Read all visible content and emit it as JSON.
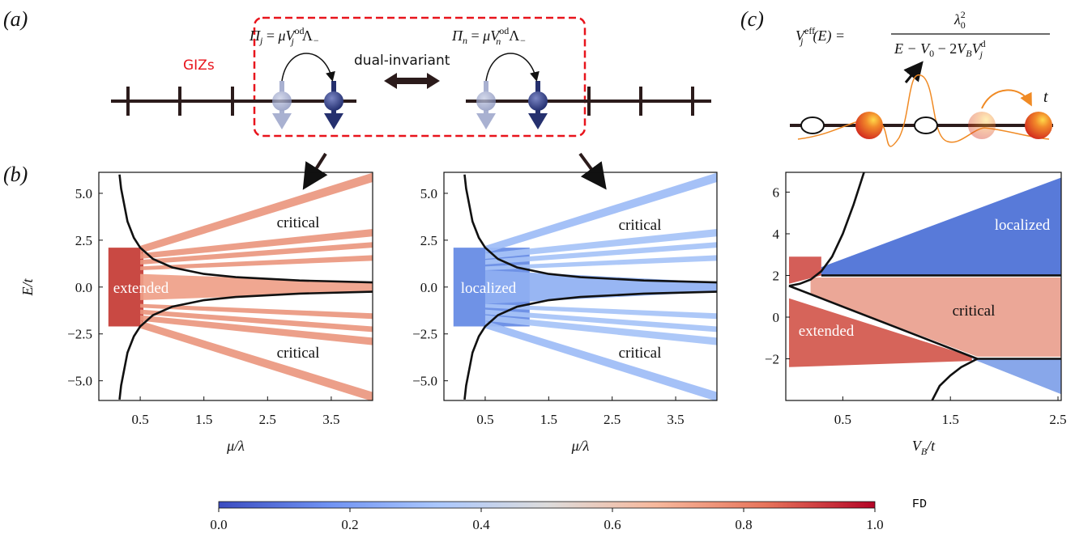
{
  "labels": {
    "a": "(a)",
    "b": "(b)",
    "c": "(c)",
    "gizs": "GIZs",
    "dual": "dual-invariant",
    "t": "t",
    "pi_j": [
      "Π",
      "j",
      " = ",
      "μ",
      "V",
      "od",
      "j",
      "Λ",
      "−"
    ],
    "pi_n": [
      "Π",
      "n",
      " = ",
      "μ",
      "V",
      "od",
      "n",
      "Λ",
      "−"
    ],
    "veff_left": [
      "V",
      "eff",
      "j",
      "(E) = "
    ],
    "veff_num": [
      "λ",
      "2",
      "0"
    ],
    "veff_den": [
      "E − V",
      "0",
      " − 2",
      "V",
      "B",
      "V",
      "d",
      "j"
    ]
  },
  "chart_data": [
    {
      "type": "band",
      "xlabel": [
        "μ/λ"
      ],
      "ylabel": "E/t",
      "xlim": [
        -0.15,
        4.15
      ],
      "ylim": [
        -6.05,
        6.12
      ],
      "xticks": [
        0.5,
        1.5,
        2.5,
        3.5
      ],
      "yticks": [
        {
          "value": 5,
          "label": "5.0"
        },
        2.5,
        {
          "value": 0,
          "label": "0.0"
        },
        {
          "value": -2.5,
          "label": "−2.5"
        },
        {
          "value": -5,
          "label": "−5.0"
        }
      ],
      "annotations": [
        "critical",
        "extended",
        "critical"
      ],
      "regions": [
        {
          "color": "#c43a33",
          "x": [
            0,
            0,
            0.55,
            0.55
          ],
          "values": [
            -2.1,
            2.1,
            2.1,
            -2.1
          ]
        },
        {
          "color": "#ea977f",
          "x": [
            0.5,
            0.5,
            4.15,
            4.15
          ],
          "values": [
            1.8,
            2.2,
            6.1,
            5.6
          ]
        },
        {
          "color": "#ea977f",
          "x": [
            0.5,
            0.5,
            4.15,
            4.15
          ],
          "values": [
            1.5,
            1.8,
            3.1,
            2.7
          ]
        },
        {
          "color": "#ea977f",
          "x": [
            0.5,
            0.5,
            4.15,
            4.15
          ],
          "values": [
            1.2,
            1.45,
            2.4,
            2.1
          ]
        },
        {
          "color": "#ea977f",
          "x": [
            0.5,
            0.5,
            4.15,
            4.15
          ],
          "values": [
            0.9,
            1.1,
            1.7,
            1.4
          ]
        },
        {
          "color": "#ef9f88",
          "x": [
            0.5,
            0.5,
            4.15,
            4.15
          ],
          "values": [
            -0.7,
            0.7,
            0.25,
            -0.25
          ]
        },
        {
          "color": "#ea977f",
          "x": [
            0.5,
            0.5,
            4.15,
            4.15
          ],
          "values": [
            -2.2,
            -1.8,
            -5.6,
            -6.1
          ]
        },
        {
          "color": "#ea977f",
          "x": [
            0.5,
            0.5,
            4.15,
            4.15
          ],
          "values": [
            -1.8,
            -1.5,
            -2.7,
            -3.1
          ]
        },
        {
          "color": "#ea977f",
          "x": [
            0.5,
            0.5,
            4.15,
            4.15
          ],
          "values": [
            -1.45,
            -1.2,
            -2.1,
            -2.4
          ]
        },
        {
          "color": "#ea977f",
          "x": [
            0.5,
            0.5,
            4.15,
            4.15
          ],
          "values": [
            -1.1,
            -0.9,
            -1.4,
            -1.7
          ]
        }
      ],
      "curves": [
        {
          "x": [
            0.175,
            0.2,
            0.3,
            0.4,
            0.5,
            0.7,
            1,
            1.5,
            2,
            3,
            4.15
          ],
          "values": [
            6.0,
            5.25,
            3.5,
            2.63,
            2.1,
            1.5,
            1.05,
            0.7,
            0.53,
            0.35,
            0.25
          ]
        },
        {
          "x": [
            0.175,
            0.2,
            0.3,
            0.4,
            0.5,
            0.7,
            1,
            1.5,
            2,
            3,
            4.15
          ],
          "values": [
            -6.0,
            -5.25,
            -3.5,
            -2.63,
            -2.1,
            -1.5,
            -1.05,
            -0.7,
            -0.53,
            -0.35,
            -0.25
          ]
        }
      ]
    },
    {
      "type": "band",
      "xlabel": [
        "μ/λ"
      ],
      "xlim": [
        -0.15,
        4.15
      ],
      "ylim": [
        -6.05,
        6.12
      ],
      "xticks": [
        0.5,
        1.5,
        2.5,
        3.5
      ],
      "yticks": [
        {
          "value": 5,
          "label": "5.0"
        },
        2.5,
        {
          "value": 0,
          "label": "0.0"
        },
        {
          "value": -2.5,
          "label": "−2.5"
        },
        {
          "value": -5,
          "label": "−5.0"
        }
      ],
      "annotations": [
        "critical",
        "localized",
        "critical"
      ],
      "regions": [
        {
          "color": "#6389e4",
          "x": [
            0,
            0,
            1.2,
            1.2
          ],
          "values": [
            -2.1,
            2.1,
            2.1,
            -2.1
          ]
        },
        {
          "color": "#9dbcf6",
          "x": [
            0.5,
            0.5,
            4.15,
            4.15
          ],
          "values": [
            1.8,
            2.2,
            6.1,
            5.6
          ]
        },
        {
          "color": "#a6c3f7",
          "x": [
            0.5,
            0.5,
            4.15,
            4.15
          ],
          "values": [
            1.5,
            1.8,
            3.1,
            2.7
          ]
        },
        {
          "color": "#a6c3f7",
          "x": [
            0.5,
            0.5,
            4.15,
            4.15
          ],
          "values": [
            1.2,
            1.45,
            2.4,
            2.1
          ]
        },
        {
          "color": "#a6c3f7",
          "x": [
            0.5,
            0.5,
            4.15,
            4.15
          ],
          "values": [
            0.9,
            1.1,
            1.7,
            1.4
          ]
        },
        {
          "color": "#8fb0f2",
          "x": [
            0.5,
            0.5,
            4.15,
            4.15
          ],
          "values": [
            -0.9,
            0.9,
            0.25,
            -0.25
          ]
        },
        {
          "color": "#9dbcf6",
          "x": [
            0.5,
            0.5,
            4.15,
            4.15
          ],
          "values": [
            -2.2,
            -1.8,
            -5.6,
            -6.1
          ]
        },
        {
          "color": "#a6c3f7",
          "x": [
            0.5,
            0.5,
            4.15,
            4.15
          ],
          "values": [
            -1.8,
            -1.5,
            -2.7,
            -3.1
          ]
        },
        {
          "color": "#a6c3f7",
          "x": [
            0.5,
            0.5,
            4.15,
            4.15
          ],
          "values": [
            -1.45,
            -1.2,
            -2.1,
            -2.4
          ]
        },
        {
          "color": "#a6c3f7",
          "x": [
            0.5,
            0.5,
            4.15,
            4.15
          ],
          "values": [
            -1.1,
            -0.9,
            -1.4,
            -1.7
          ]
        }
      ],
      "curves": [
        {
          "x": [
            0.175,
            0.2,
            0.3,
            0.4,
            0.5,
            0.7,
            1,
            1.5,
            2,
            3,
            4.15
          ],
          "values": [
            6.0,
            5.25,
            3.5,
            2.63,
            2.1,
            1.5,
            1.05,
            0.7,
            0.53,
            0.35,
            0.25
          ]
        },
        {
          "x": [
            0.175,
            0.2,
            0.3,
            0.4,
            0.5,
            0.7,
            1,
            1.5,
            2,
            3,
            4.15
          ],
          "values": [
            -6.0,
            -5.25,
            -3.5,
            -2.63,
            -2.1,
            -1.5,
            -1.05,
            -0.7,
            -0.53,
            -0.35,
            -0.25
          ]
        }
      ]
    },
    {
      "type": "band",
      "xlabel": [
        "V",
        "B",
        "/t"
      ],
      "xlim": [
        -0.03,
        2.53
      ],
      "ylim": [
        -4.0,
        6.95
      ],
      "xticks": [
        0.5,
        1.5,
        2.5
      ],
      "yticks": [
        6,
        4,
        2,
        0,
        {
          "value": -2,
          "label": "−2"
        }
      ],
      "annotations": [
        "localized",
        "critical",
        "extended"
      ],
      "regions": [
        {
          "color": "#d0504a",
          "x": [
            0,
            0,
            0.3,
            0.3
          ],
          "values": [
            1.6,
            2.9,
            2.9,
            2.0
          ]
        },
        {
          "color": "#4a6fd6",
          "x": [
            0.3,
            2.53,
            2.53,
            0.3
          ],
          "values": [
            2.0,
            2.0,
            6.7,
            2.4
          ]
        },
        {
          "color": "#e9a08e",
          "x": [
            0.2,
            2.53,
            2.53,
            1.75,
            0.2
          ],
          "values": [
            1.9,
            1.9,
            -1.9,
            -1.9,
            1.1
          ]
        },
        {
          "color": "#d2574c",
          "x": [
            0,
            1.7,
            1.7,
            0
          ],
          "values": [
            0.9,
            -1.9,
            -2.1,
            -2.4
          ]
        },
        {
          "color": "#7e9fe8",
          "x": [
            1.7,
            2.53,
            2.53
          ],
          "values": [
            -2.0,
            -2.0,
            -3.7
          ]
        }
      ],
      "curves": [
        {
          "x": [
            0,
            0.1,
            0.2,
            0.3,
            0.4,
            0.5,
            0.6,
            0.7
          ],
          "values": [
            1.5,
            1.6,
            1.8,
            2.2,
            2.9,
            4.0,
            5.4,
            7.0
          ]
        },
        {
          "x": [
            0.3,
            2.53
          ],
          "values": [
            2,
            2
          ]
        },
        {
          "x": [
            0,
            1.75
          ],
          "values": [
            1.5,
            -2
          ]
        },
        {
          "x": [
            1.75,
            2.53
          ],
          "values": [
            -2,
            -2
          ]
        },
        {
          "x": [
            1.33,
            1.4,
            1.5,
            1.6,
            1.75
          ],
          "values": [
            -4.0,
            -3.3,
            -2.8,
            -2.4,
            -2.0
          ]
        }
      ]
    },
    {
      "type": "colorbar",
      "label": "FD",
      "xlim": [
        0,
        1
      ],
      "colors": [
        "#3b4cc0",
        "#6f92f3",
        "#aac7fd",
        "#dddcdc",
        "#f7b89c",
        "#e7745b",
        "#b40426"
      ],
      "xticks": [
        {
          "value": 0,
          "label": "0.0"
        },
        {
          "value": 0.2,
          "label": "0.2"
        },
        {
          "value": 0.4,
          "label": "0.4"
        },
        {
          "value": 0.6,
          "label": "0.6"
        },
        {
          "value": 0.8,
          "label": "0.8"
        },
        {
          "value": 1,
          "label": "1.0"
        }
      ]
    }
  ]
}
